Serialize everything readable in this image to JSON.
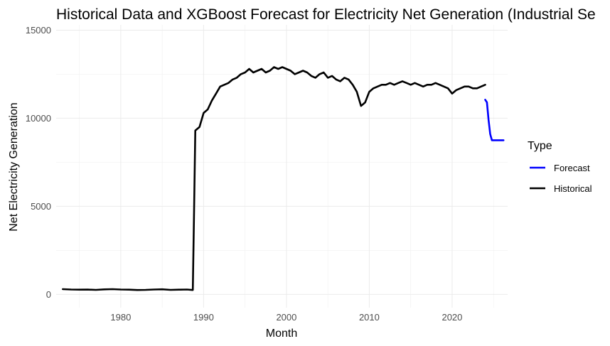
{
  "chart_data": {
    "type": "line",
    "title": "Historical Data and XGBoost Forecast for Electricity Net Generation (Industrial Se",
    "xlabel": "Month",
    "ylabel": "Net Electricity Generation",
    "xlim": [
      1972.2,
      2026.7
    ],
    "ylim": [
      -750,
      15300
    ],
    "x_ticks": [
      1980,
      1990,
      2000,
      2010,
      2020
    ],
    "y_ticks": [
      0,
      5000,
      10000,
      15000
    ],
    "grid": true,
    "legend": {
      "title": "Type",
      "position": "right",
      "entries": [
        {
          "label": "Forecast",
          "color": "#0000ff"
        },
        {
          "label": "Historical",
          "color": "#000000"
        }
      ]
    },
    "series": [
      {
        "name": "Historical",
        "color": "#000000",
        "points": [
          [
            1973.0,
            300
          ],
          [
            1974.0,
            280
          ],
          [
            1975.0,
            270
          ],
          [
            1976.0,
            275
          ],
          [
            1977.0,
            260
          ],
          [
            1978.0,
            285
          ],
          [
            1979.0,
            300
          ],
          [
            1980.0,
            280
          ],
          [
            1981.0,
            270
          ],
          [
            1982.0,
            250
          ],
          [
            1983.0,
            260
          ],
          [
            1984.0,
            280
          ],
          [
            1985.0,
            290
          ],
          [
            1986.0,
            260
          ],
          [
            1987.0,
            270
          ],
          [
            1988.0,
            280
          ],
          [
            1988.7,
            250
          ],
          [
            1988.85,
            4800
          ],
          [
            1989.0,
            9300
          ],
          [
            1989.5,
            9500
          ],
          [
            1990.0,
            10300
          ],
          [
            1990.5,
            10500
          ],
          [
            1991.0,
            11000
          ],
          [
            1991.5,
            11400
          ],
          [
            1992.0,
            11800
          ],
          [
            1992.5,
            11900
          ],
          [
            1993.0,
            12000
          ],
          [
            1993.5,
            12200
          ],
          [
            1994.0,
            12300
          ],
          [
            1994.5,
            12500
          ],
          [
            1995.0,
            12600
          ],
          [
            1995.5,
            12800
          ],
          [
            1996.0,
            12600
          ],
          [
            1996.5,
            12700
          ],
          [
            1997.0,
            12800
          ],
          [
            1997.5,
            12600
          ],
          [
            1998.0,
            12700
          ],
          [
            1998.5,
            12900
          ],
          [
            1999.0,
            12800
          ],
          [
            1999.5,
            12900
          ],
          [
            2000.0,
            12800
          ],
          [
            2000.5,
            12700
          ],
          [
            2001.0,
            12500
          ],
          [
            2001.5,
            12600
          ],
          [
            2002.0,
            12700
          ],
          [
            2002.5,
            12600
          ],
          [
            2003.0,
            12400
          ],
          [
            2003.5,
            12300
          ],
          [
            2004.0,
            12500
          ],
          [
            2004.5,
            12600
          ],
          [
            2005.0,
            12300
          ],
          [
            2005.5,
            12400
          ],
          [
            2006.0,
            12200
          ],
          [
            2006.5,
            12100
          ],
          [
            2007.0,
            12300
          ],
          [
            2007.5,
            12200
          ],
          [
            2008.0,
            11900
          ],
          [
            2008.5,
            11500
          ],
          [
            2009.0,
            10700
          ],
          [
            2009.5,
            10900
          ],
          [
            2010.0,
            11500
          ],
          [
            2010.5,
            11700
          ],
          [
            2011.0,
            11800
          ],
          [
            2011.5,
            11900
          ],
          [
            2012.0,
            11900
          ],
          [
            2012.5,
            12000
          ],
          [
            2013.0,
            11900
          ],
          [
            2013.5,
            12000
          ],
          [
            2014.0,
            12100
          ],
          [
            2014.5,
            12000
          ],
          [
            2015.0,
            11900
          ],
          [
            2015.5,
            12000
          ],
          [
            2016.0,
            11900
          ],
          [
            2016.5,
            11800
          ],
          [
            2017.0,
            11900
          ],
          [
            2017.5,
            11900
          ],
          [
            2018.0,
            12000
          ],
          [
            2018.5,
            11900
          ],
          [
            2019.0,
            11800
          ],
          [
            2019.5,
            11700
          ],
          [
            2020.0,
            11400
          ],
          [
            2020.5,
            11600
          ],
          [
            2021.0,
            11700
          ],
          [
            2021.5,
            11800
          ],
          [
            2022.0,
            11800
          ],
          [
            2022.5,
            11700
          ],
          [
            2023.0,
            11700
          ],
          [
            2023.5,
            11800
          ],
          [
            2024.0,
            11900
          ]
        ]
      },
      {
        "name": "Forecast",
        "color": "#0000ff",
        "points": [
          [
            2024.0,
            11050
          ],
          [
            2024.2,
            10900
          ],
          [
            2024.4,
            9900
          ],
          [
            2024.6,
            9100
          ],
          [
            2024.8,
            8750
          ],
          [
            2025.0,
            8750
          ],
          [
            2025.5,
            8750
          ],
          [
            2026.0,
            8750
          ],
          [
            2026.2,
            8750
          ]
        ]
      }
    ]
  }
}
